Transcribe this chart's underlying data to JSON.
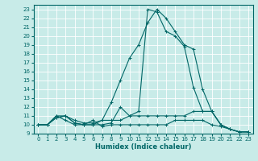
{
  "xlabel": "Humidex (Indice chaleur)",
  "background_color": "#c8ebe8",
  "line_color": "#006666",
  "grid_color": "#ffffff",
  "xlim": [
    -0.5,
    23.5
  ],
  "ylim": [
    9,
    23.5
  ],
  "yticks": [
    9,
    10,
    11,
    12,
    13,
    14,
    15,
    16,
    17,
    18,
    19,
    20,
    21,
    22,
    23
  ],
  "xticks": [
    0,
    1,
    2,
    3,
    4,
    5,
    6,
    7,
    8,
    9,
    10,
    11,
    12,
    13,
    14,
    15,
    16,
    17,
    18,
    19,
    20,
    21,
    22,
    23
  ],
  "series": [
    {
      "x": [
        0,
        1,
        2,
        3,
        4,
        5,
        6,
        7,
        8,
        9,
        10,
        11,
        12,
        13,
        14,
        15,
        16,
        17,
        18,
        19,
        20,
        21,
        22,
        23
      ],
      "y": [
        10,
        10,
        10.8,
        11,
        10.2,
        10,
        10,
        10.5,
        12.5,
        15,
        17.5,
        19,
        21.5,
        23,
        22,
        20.5,
        19,
        18.5,
        14,
        11.5,
        10,
        9.5,
        9.2,
        9.2
      ]
    },
    {
      "x": [
        0,
        1,
        2,
        3,
        4,
        5,
        6,
        7,
        8,
        9,
        10,
        11,
        12,
        13,
        14,
        15,
        16,
        17,
        18,
        19,
        20,
        21,
        22,
        23
      ],
      "y": [
        10,
        10,
        10.8,
        11,
        10.2,
        10,
        10,
        10,
        10.2,
        12,
        11,
        11.5,
        23,
        22.7,
        20.5,
        20,
        18.8,
        14.2,
        11.5,
        11.5,
        10,
        9.5,
        9.2,
        9.2
      ]
    },
    {
      "x": [
        0,
        1,
        2,
        3,
        4,
        5,
        6,
        7,
        8,
        9,
        10,
        11,
        12,
        13,
        14,
        15,
        16,
        17,
        18,
        19,
        20,
        21,
        22,
        23
      ],
      "y": [
        10,
        10,
        11,
        11,
        10.5,
        10.2,
        10.2,
        10.5,
        10.5,
        10.5,
        11,
        11,
        11,
        11,
        11,
        11,
        11,
        11.5,
        11.5,
        11.5,
        10,
        9.5,
        9.2,
        9.2
      ]
    },
    {
      "x": [
        0,
        1,
        2,
        3,
        4,
        5,
        6,
        7,
        8,
        9,
        10,
        11,
        12,
        13,
        14,
        15,
        16,
        17,
        18,
        19,
        20,
        21,
        22,
        23
      ],
      "y": [
        10,
        10,
        11,
        10.5,
        10,
        10,
        10.5,
        9.8,
        10,
        10,
        10,
        10,
        10,
        10,
        10,
        10.5,
        10.5,
        10.5,
        10.5,
        10,
        9.8,
        9.5,
        9.2,
        9.2
      ]
    }
  ]
}
